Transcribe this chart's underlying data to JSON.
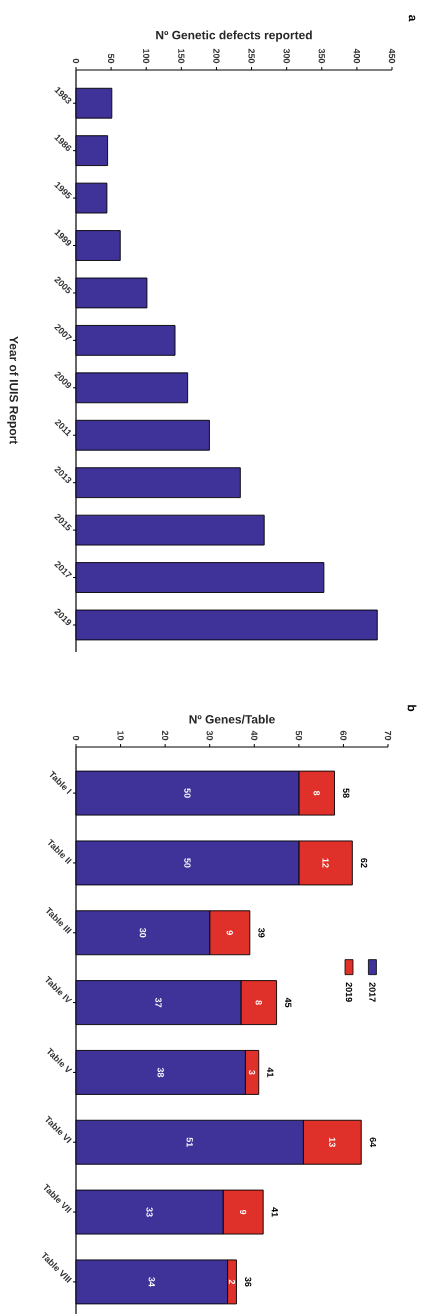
{
  "chart_data": [
    {
      "type": "bar",
      "orientation": "horizontal",
      "annotations": [
        "a"
      ],
      "xlabel": "Nº Genetic defects reported",
      "ylabel": "Year of IUIS Report",
      "categories": [
        "1983",
        "1986",
        "1995",
        "1999",
        "2005",
        "2007",
        "2009",
        "2011",
        "2013",
        "2015",
        "2017",
        "2019"
      ],
      "values": [
        51,
        45,
        44,
        63,
        101,
        141,
        159,
        190,
        234,
        268,
        353,
        429
      ],
      "color": "#3f3399",
      "xlim": [
        0,
        450
      ],
      "xticks": [
        0,
        50,
        100,
        150,
        200,
        250,
        300,
        350,
        400,
        450
      ]
    },
    {
      "type": "bar",
      "orientation": "horizontal",
      "stacked": true,
      "annotations": [
        "b"
      ],
      "xlabel": "Nº Genes/Table",
      "categories": [
        "Table I",
        "Table II",
        "Table III",
        "Table IV",
        "Table V",
        "Table VI",
        "Table VII",
        "Table VIII"
      ],
      "series": [
        {
          "name": "2017",
          "color": "#3f3399",
          "values": [
            50,
            50,
            30,
            37,
            38,
            51,
            33,
            34
          ]
        },
        {
          "name": "2019",
          "color": "#e0302a",
          "values": [
            8,
            12,
            9,
            8,
            3,
            13,
            9,
            2
          ]
        }
      ],
      "data_labels": true,
      "totals": [
        "58",
        "62",
        "39",
        "45",
        "41",
        "64",
        "41",
        "36"
      ],
      "legend": "right",
      "xlim": [
        0,
        70
      ],
      "xticks": [
        0,
        10,
        20,
        30,
        40,
        50,
        60,
        70
      ]
    }
  ]
}
